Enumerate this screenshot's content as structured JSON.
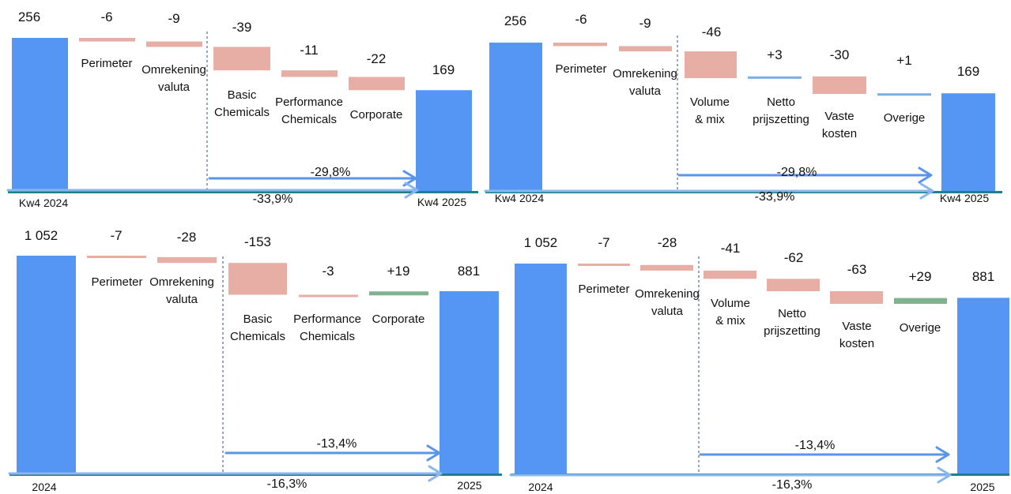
{
  "colors": {
    "total": "#5596f4",
    "decrease": "#e6aea5",
    "increase": "#7fb38e",
    "neutral": "#7aaee6",
    "baseline": "#1f7f8a",
    "arrow": "#5a95ea",
    "arrow_light": "#8ab6ef",
    "divider": "#2b4c8c"
  },
  "chart_data": [
    {
      "type": "waterfall",
      "title": "",
      "categories": [
        "Kw4 2024",
        "Perimeter",
        "Omrekening valuta",
        "Basic Chemicals",
        "Performance Chemicals",
        "Corporate",
        "Kw4 2025"
      ],
      "values": [
        256,
        -6,
        -9,
        -39,
        -11,
        -22,
        169
      ],
      "value_labels": [
        "256",
        "-6",
        "-9",
        "-39",
        "-11",
        "-22",
        "169"
      ],
      "kinds": [
        "total",
        "delta",
        "delta",
        "delta",
        "delta",
        "delta",
        "total"
      ],
      "axis_labels": [
        "Kw4 2024",
        "Kw4 2025"
      ],
      "arrows": [
        "-29,8%",
        "-33,9%"
      ],
      "grid": false,
      "legend": "none"
    },
    {
      "type": "waterfall",
      "title": "",
      "categories": [
        "Kw4 2024",
        "Perimeter",
        "Omrekening valuta",
        "Volume & mix",
        "Netto prijszetting",
        "Vaste kosten",
        "Overige",
        "Kw4 2025"
      ],
      "values": [
        256,
        -6,
        -9,
        -46,
        3,
        -30,
        1,
        169
      ],
      "value_labels": [
        "256",
        "-6",
        "-9",
        "-46",
        "+3",
        "-30",
        "+1",
        "169"
      ],
      "kinds": [
        "total",
        "delta",
        "delta",
        "delta",
        "delta",
        "delta",
        "delta",
        "total"
      ],
      "axis_labels": [
        "Kw4 2024",
        "Kw4 2025"
      ],
      "arrows": [
        "-29,8%",
        "-33,9%"
      ],
      "grid": false,
      "legend": "none"
    },
    {
      "type": "waterfall",
      "title": "",
      "categories": [
        "2024",
        "Perimeter",
        "Omrekening valuta",
        "Basic Chemicals",
        "Performance Chemicals",
        "Corporate",
        "2025"
      ],
      "values": [
        1052,
        -7,
        -28,
        -153,
        -3,
        19,
        881
      ],
      "value_labels": [
        "1 052",
        "-7",
        "-28",
        "-153",
        "-3",
        "+19",
        "881"
      ],
      "kinds": [
        "total",
        "delta",
        "delta",
        "delta",
        "delta",
        "delta",
        "total"
      ],
      "axis_labels": [
        "2024",
        "2025"
      ],
      "arrows": [
        "-13,4%",
        "-16,3%"
      ],
      "grid": false,
      "legend": "none"
    },
    {
      "type": "waterfall",
      "title": "",
      "categories": [
        "2024",
        "Perimeter",
        "Omrekening valuta",
        "Volume & mix",
        "Netto prijszetting",
        "Vaste kosten",
        "Overige",
        "2025"
      ],
      "values": [
        1052,
        -7,
        -28,
        -41,
        -62,
        -63,
        29,
        881
      ],
      "value_labels": [
        "1 052",
        "-7",
        "-28",
        "-41",
        "-62",
        "-63",
        "+29",
        "881"
      ],
      "kinds": [
        "total",
        "delta",
        "delta",
        "delta",
        "delta",
        "delta",
        "delta",
        "total"
      ],
      "axis_labels": [
        "2024",
        "2025"
      ],
      "arrows": [
        "-13,4%",
        "-16,3%"
      ],
      "grid": false,
      "legend": "none"
    }
  ]
}
